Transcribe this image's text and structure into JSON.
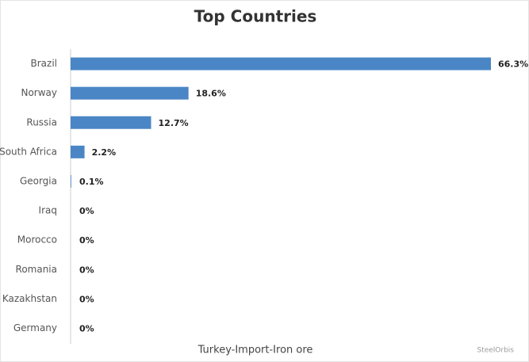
{
  "chart_data": {
    "type": "bar",
    "orientation": "horizontal",
    "title": "Top Countries",
    "subtitle": "Turkey-Import-Iron ore",
    "credit": "SteelOrbis",
    "categories": [
      "Brazil",
      "Norway",
      "Russia",
      "South Africa",
      "Georgia",
      "Iraq",
      "Morocco",
      "Romania",
      "Kazakhstan",
      "Germany"
    ],
    "values": [
      66.3,
      18.6,
      12.7,
      2.2,
      0.1,
      0,
      0,
      0,
      0,
      0
    ],
    "value_labels": [
      "66.3%",
      "18.6%",
      "12.7%",
      "2.2%",
      "0.1%",
      "0%",
      "0%",
      "0%",
      "0%",
      "0%"
    ],
    "color": "#4a86c5"
  }
}
